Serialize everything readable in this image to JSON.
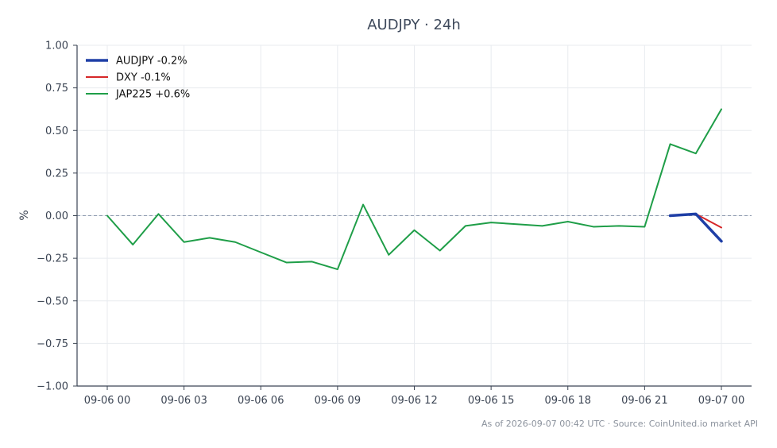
{
  "chart_data": {
    "type": "line",
    "title": "AUDJPY · 24h",
    "xlabel": "",
    "ylabel": "%",
    "ylim": [
      -1.0,
      1.0
    ],
    "xlim": [
      "09-06 00",
      "09-07 00"
    ],
    "x_ticks": [
      "09-06 00",
      "09-06 03",
      "09-06 06",
      "09-06 09",
      "09-06 12",
      "09-06 15",
      "09-06 18",
      "09-06 21",
      "09-07 00"
    ],
    "y_ticks": [
      "1.00",
      "0.75",
      "0.50",
      "0.25",
      "0.00",
      "−0.25",
      "−0.50",
      "−0.75",
      "−1.00"
    ],
    "grid": true,
    "zero_line": true,
    "legend_position": "top-left",
    "series": [
      {
        "name": "AUDJPY -0.2%",
        "color": "#1f3fa6",
        "x": [
          "09-06 22",
          "09-06 23",
          "09-07 00"
        ],
        "values": [
          0.0,
          0.01,
          -0.15
        ]
      },
      {
        "name": "DXY -0.1%",
        "color": "#d62728",
        "x": [
          "09-06 22",
          "09-06 23",
          "09-07 00"
        ],
        "values": [
          0.0,
          0.01,
          -0.07
        ]
      },
      {
        "name": "JAP225 +0.6%",
        "color": "#1f9e48",
        "x": [
          "09-06 00",
          "09-06 01",
          "09-06 02",
          "09-06 03",
          "09-06 04",
          "09-06 05",
          "09-06 06",
          "09-06 07",
          "09-06 08",
          "09-06 09",
          "09-06 10",
          "09-06 11",
          "09-06 12",
          "09-06 13",
          "09-06 14",
          "09-06 15",
          "09-06 16",
          "09-06 17",
          "09-06 18",
          "09-06 19",
          "09-06 20",
          "09-06 21",
          "09-06 22",
          "09-06 23",
          "09-07 00"
        ],
        "values": [
          0.0,
          -0.17,
          0.01,
          -0.155,
          -0.13,
          -0.155,
          -0.215,
          -0.275,
          -0.27,
          -0.315,
          0.065,
          -0.23,
          -0.085,
          -0.205,
          -0.06,
          -0.04,
          -0.05,
          -0.06,
          -0.035,
          -0.065,
          -0.06,
          -0.065,
          0.42,
          0.365,
          0.625
        ]
      }
    ]
  },
  "footer": {
    "text": "As of 2026-09-07 00:42 UTC · Source: CoinUnited.io market API"
  }
}
